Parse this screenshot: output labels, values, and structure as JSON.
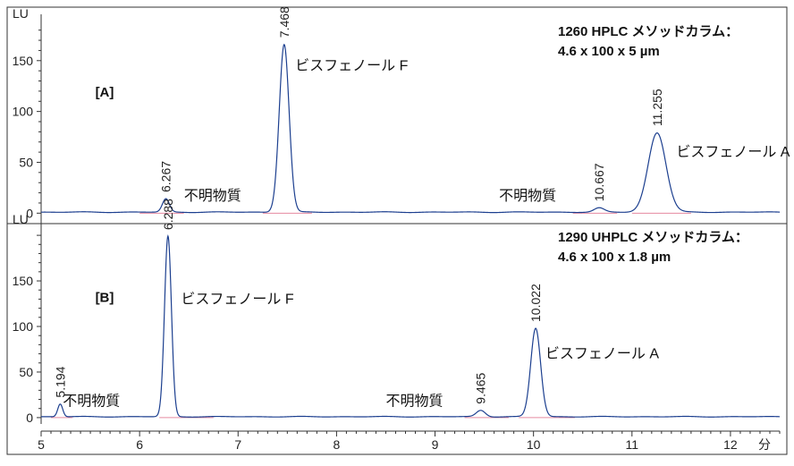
{
  "chart_data": {
    "type": "line",
    "xlabel": "分",
    "xlim": [
      5,
      12.5
    ],
    "x_ticks": [
      5,
      6,
      7,
      8,
      9,
      10,
      11,
      12
    ],
    "panels": [
      {
        "tag": "[A]",
        "ylabel": "LU",
        "ylim": [
          -5,
          185
        ],
        "y_ticks": [
          0,
          50,
          100,
          150
        ],
        "info_lines": [
          "1260 HPLC メソッドカラム：",
          "4.6 x 100 x 5 µm"
        ],
        "peaks": [
          {
            "rt": 6.267,
            "height": 13,
            "width": 0.035,
            "label": "6.267"
          },
          {
            "rt": 7.468,
            "height": 165,
            "width": 0.05,
            "label": "7.468"
          },
          {
            "rt": 10.667,
            "height": 4,
            "width": 0.05,
            "label": "10.667"
          },
          {
            "rt": 11.255,
            "height": 78,
            "width": 0.09,
            "label": "11.255"
          }
        ],
        "annotations": [
          {
            "text": "ビスフェノール F",
            "x": 7.58,
            "y": 145
          },
          {
            "text": "不明物質",
            "x": 6.45,
            "y": 17
          },
          {
            "text": "不明物質",
            "x": 9.65,
            "y": 17
          },
          {
            "text": "ビスフェノール A",
            "x": 11.45,
            "y": 60
          }
        ],
        "baseline_segments": [
          [
            6.0,
            6.45
          ],
          [
            7.25,
            7.75
          ],
          [
            10.4,
            10.85
          ],
          [
            11.0,
            11.6
          ]
        ]
      },
      {
        "tag": "[B]",
        "ylabel": "LU",
        "ylim": [
          -5,
          205
        ],
        "y_ticks": [
          0,
          50,
          100,
          150
        ],
        "info_lines": [
          "1290 UHPLC メソッドカラム：",
          "4.6 x 100 x 1.8 µm"
        ],
        "peaks": [
          {
            "rt": 5.194,
            "height": 14,
            "width": 0.025,
            "label": "5.194"
          },
          {
            "rt": 6.288,
            "height": 198,
            "width": 0.035,
            "label": "6.288"
          },
          {
            "rt": 9.465,
            "height": 7,
            "width": 0.045,
            "label": "9.465"
          },
          {
            "rt": 10.022,
            "height": 97,
            "width": 0.05,
            "label": "10.022"
          }
        ],
        "annotations": [
          {
            "text": "ビスフェノール F",
            "x": 6.42,
            "y": 130
          },
          {
            "text": "不明物質",
            "x": 5.22,
            "y": 18
          },
          {
            "text": "不明物質",
            "x": 8.5,
            "y": 18
          },
          {
            "text": "ビスフェノール A",
            "x": 10.12,
            "y": 70
          }
        ],
        "baseline_segments": [
          [
            5.1,
            5.32
          ],
          [
            6.2,
            6.75
          ],
          [
            9.3,
            9.75
          ],
          [
            9.85,
            10.42
          ]
        ]
      }
    ]
  }
}
